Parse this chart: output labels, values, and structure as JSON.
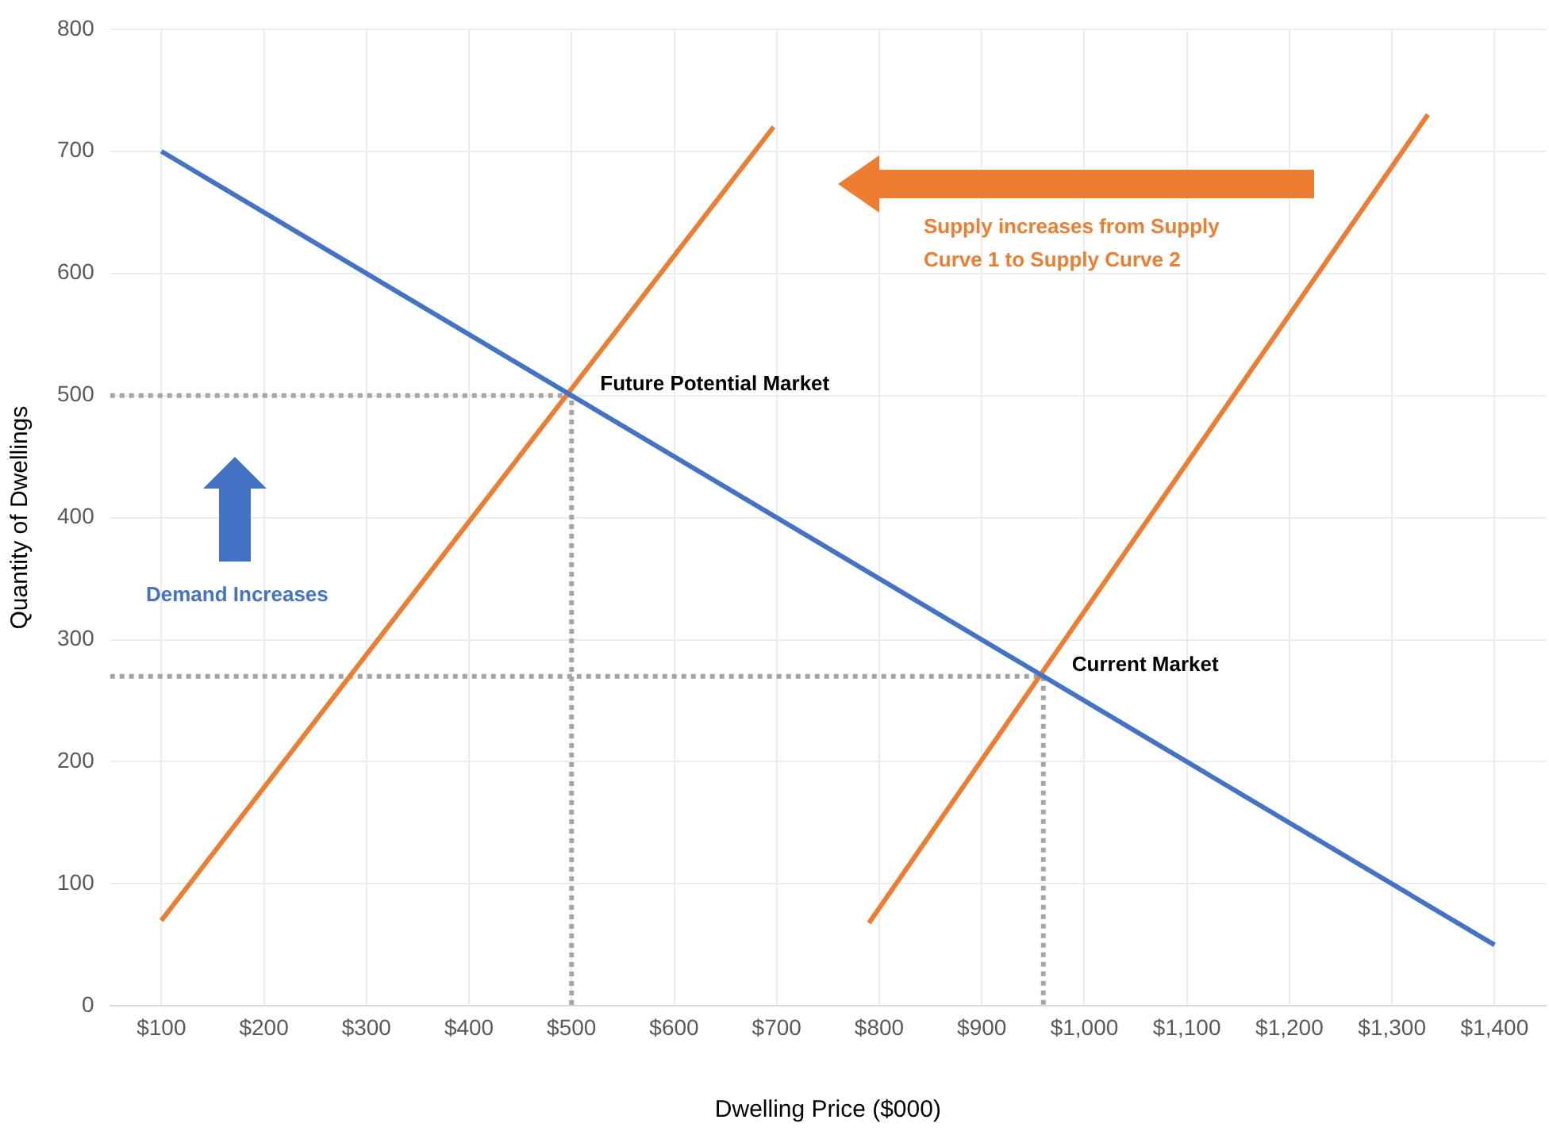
{
  "chart_data": {
    "type": "line",
    "xlabel": "Dwelling Price ($000)",
    "ylabel": "Quantity of Dwellings",
    "xlim": [
      50,
      1450
    ],
    "ylim": [
      0,
      800
    ],
    "xticks": [
      {
        "value": 100,
        "label": "$100"
      },
      {
        "value": 200,
        "label": "$200"
      },
      {
        "value": 300,
        "label": "$300"
      },
      {
        "value": 400,
        "label": "$400"
      },
      {
        "value": 500,
        "label": "$500"
      },
      {
        "value": 600,
        "label": "$600"
      },
      {
        "value": 700,
        "label": "$700"
      },
      {
        "value": 800,
        "label": "$800"
      },
      {
        "value": 900,
        "label": "$900"
      },
      {
        "value": 1000,
        "label": "$1,000"
      },
      {
        "value": 1100,
        "label": "$1,100"
      },
      {
        "value": 1200,
        "label": "$1,200"
      },
      {
        "value": 1300,
        "label": "$1,300"
      },
      {
        "value": 1400,
        "label": "$1,400"
      }
    ],
    "yticks": [
      0,
      100,
      200,
      300,
      400,
      500,
      600,
      700,
      800
    ],
    "grid": true,
    "legend": false,
    "marker": "none",
    "series": [
      {
        "color": "#4472c4",
        "x": [
          100,
          1400
        ],
        "values": [
          700,
          50
        ]
      },
      {
        "color": "#ed7d31",
        "x": [
          100,
          697
        ],
        "values": [
          70,
          720
        ]
      },
      {
        "color": "#ed7d31",
        "x": [
          790,
          1335
        ],
        "values": [
          68,
          730
        ]
      },
      {
        "color": "#a5a5a5",
        "line_style": "dotted",
        "x": [
          50,
          500,
          500
        ],
        "values": [
          500,
          500,
          0
        ]
      },
      {
        "color": "#a5a5a5",
        "line_style": "dotted",
        "x": [
          50,
          960,
          960
        ],
        "values": [
          270,
          270,
          0
        ]
      }
    ],
    "annotations": [
      {
        "text": "Future Potential Market",
        "x": 500,
        "y": 500
      },
      {
        "text": "Current Market",
        "x": 960,
        "y": 270
      },
      "Supply increases from Supply Curve 1 to Supply Curve 2",
      "Demand Increases"
    ]
  }
}
